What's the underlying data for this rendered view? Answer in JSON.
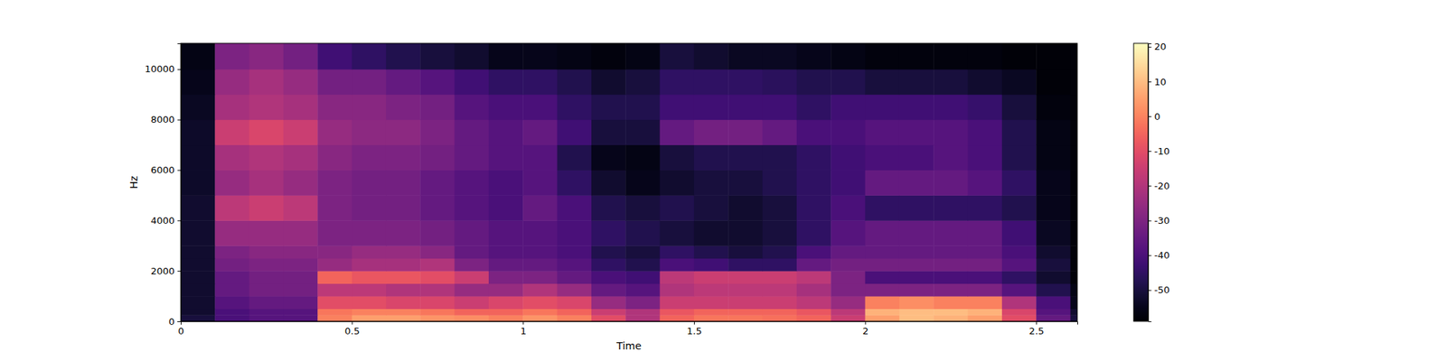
{
  "chart_data": {
    "type": "heatmap",
    "x_label": "Time",
    "y_label": "Hz",
    "xlim": [
      0,
      2.62
    ],
    "xticks": [
      0,
      0.5,
      1,
      1.5,
      2,
      2.5
    ],
    "ylim": [
      0,
      11025
    ],
    "yticks": [
      0,
      2000,
      4000,
      6000,
      8000,
      10000
    ],
    "x_edges": [
      0,
      0.1,
      0.2,
      0.3,
      0.4,
      0.5,
      0.6,
      0.7,
      0.8,
      0.9,
      1,
      1.1,
      1.2,
      1.3,
      1.4,
      1.5,
      1.6,
      1.7,
      1.8,
      1.9,
      2,
      2.1,
      2.2,
      2.3,
      2.4,
      2.5,
      2.6,
      2.7
    ],
    "y_edges": [
      0,
      250,
      500,
      1000,
      1500,
      2000,
      2500,
      3000,
      4000,
      5000,
      6000,
      7000,
      8000,
      9000,
      10000,
      11025
    ],
    "cells": [
      [
        -50,
        -40,
        -38,
        -38,
        0,
        5,
        5,
        3,
        2,
        0,
        3,
        0,
        -10,
        -20,
        -5,
        -2,
        -2,
        -3,
        -5,
        -15,
        5,
        10,
        8,
        5,
        -10,
        -35,
        -50
      ],
      [
        -52,
        -40,
        -38,
        -38,
        -2,
        0,
        0,
        -2,
        -5,
        -5,
        -2,
        -5,
        -15,
        -20,
        -8,
        -5,
        -5,
        -5,
        -8,
        -18,
        8,
        10,
        10,
        8,
        -12,
        -38,
        -52
      ],
      [
        -52,
        -38,
        -35,
        -35,
        -10,
        -10,
        -12,
        -12,
        -15,
        -12,
        -10,
        -12,
        -25,
        -30,
        -15,
        -15,
        -15,
        -15,
        -18,
        -25,
        0,
        2,
        0,
        0,
        -20,
        -40,
        -55
      ],
      [
        -52,
        -35,
        -32,
        -32,
        -18,
        -18,
        -20,
        -20,
        -25,
        -25,
        -20,
        -25,
        -35,
        -38,
        -20,
        -18,
        -18,
        -18,
        -22,
        -30,
        -30,
        -30,
        -30,
        -30,
        -38,
        -48,
        -56
      ],
      [
        -52,
        -35,
        -32,
        -32,
        -5,
        -8,
        -8,
        -10,
        -15,
        -30,
        -30,
        -35,
        -40,
        -42,
        -18,
        -15,
        -15,
        -15,
        -18,
        -30,
        -40,
        -40,
        -40,
        -40,
        -45,
        -52,
        -58
      ],
      [
        -52,
        -32,
        -30,
        -30,
        -25,
        -22,
        -22,
        -20,
        -30,
        -35,
        -35,
        -38,
        -45,
        -48,
        -40,
        -42,
        -45,
        -45,
        -35,
        -32,
        -32,
        -32,
        -32,
        -32,
        -38,
        -50,
        -58
      ],
      [
        -52,
        -30,
        -28,
        -28,
        -28,
        -25,
        -25,
        -28,
        -35,
        -38,
        -38,
        -40,
        -48,
        -50,
        -45,
        -48,
        -50,
        -48,
        -40,
        -35,
        -35,
        -35,
        -35,
        -35,
        -40,
        -52,
        -58
      ],
      [
        -52,
        -25,
        -25,
        -25,
        -30,
        -30,
        -30,
        -32,
        -35,
        -38,
        -38,
        -40,
        -45,
        -48,
        -50,
        -52,
        -52,
        -50,
        -45,
        -38,
        -35,
        -35,
        -35,
        -35,
        -42,
        -54,
        -58
      ],
      [
        -52,
        -18,
        -15,
        -18,
        -30,
        -32,
        -32,
        -35,
        -38,
        -40,
        -35,
        -40,
        -48,
        -50,
        -48,
        -50,
        -52,
        -50,
        -45,
        -40,
        -45,
        -45,
        -45,
        -45,
        -48,
        -55,
        -58
      ],
      [
        -53,
        -25,
        -22,
        -25,
        -30,
        -32,
        -32,
        -35,
        -38,
        -40,
        -38,
        -45,
        -52,
        -55,
        -52,
        -50,
        -50,
        -48,
        -45,
        -42,
        -35,
        -35,
        -35,
        -38,
        -45,
        -55,
        -58
      ],
      [
        -53,
        -22,
        -20,
        -22,
        -28,
        -30,
        -30,
        -32,
        -35,
        -38,
        -38,
        -48,
        -55,
        -56,
        -50,
        -48,
        -48,
        -48,
        -45,
        -42,
        -40,
        -40,
        -38,
        -40,
        -48,
        -56,
        -58
      ],
      [
        -53,
        -15,
        -12,
        -15,
        -25,
        -27,
        -27,
        -30,
        -35,
        -38,
        -35,
        -42,
        -50,
        -50,
        -35,
        -32,
        -32,
        -35,
        -40,
        -40,
        -38,
        -38,
        -38,
        -40,
        -48,
        -56,
        -58
      ],
      [
        -54,
        -22,
        -20,
        -22,
        -28,
        -28,
        -30,
        -32,
        -38,
        -40,
        -40,
        -45,
        -48,
        -48,
        -42,
        -42,
        -42,
        -42,
        -45,
        -42,
        -42,
        -42,
        -42,
        -44,
        -50,
        -57,
        -58
      ],
      [
        -55,
        -25,
        -22,
        -25,
        -32,
        -32,
        -35,
        -38,
        -42,
        -45,
        -45,
        -48,
        -52,
        -50,
        -45,
        -45,
        -45,
        -46,
        -48,
        -48,
        -50,
        -50,
        -50,
        -52,
        -54,
        -58,
        -58
      ],
      [
        -56,
        -30,
        -28,
        -32,
        -42,
        -45,
        -48,
        -50,
        -52,
        -55,
        -55,
        -56,
        -57,
        -56,
        -50,
        -52,
        -54,
        -54,
        -55,
        -56,
        -57,
        -57,
        -57,
        -57,
        -58,
        -58,
        -58
      ]
    ],
    "colorbar_range": [
      -59,
      21
    ],
    "colorbar_ticks": [
      -50,
      -40,
      -30,
      -20,
      -10,
      0,
      10,
      20
    ]
  }
}
